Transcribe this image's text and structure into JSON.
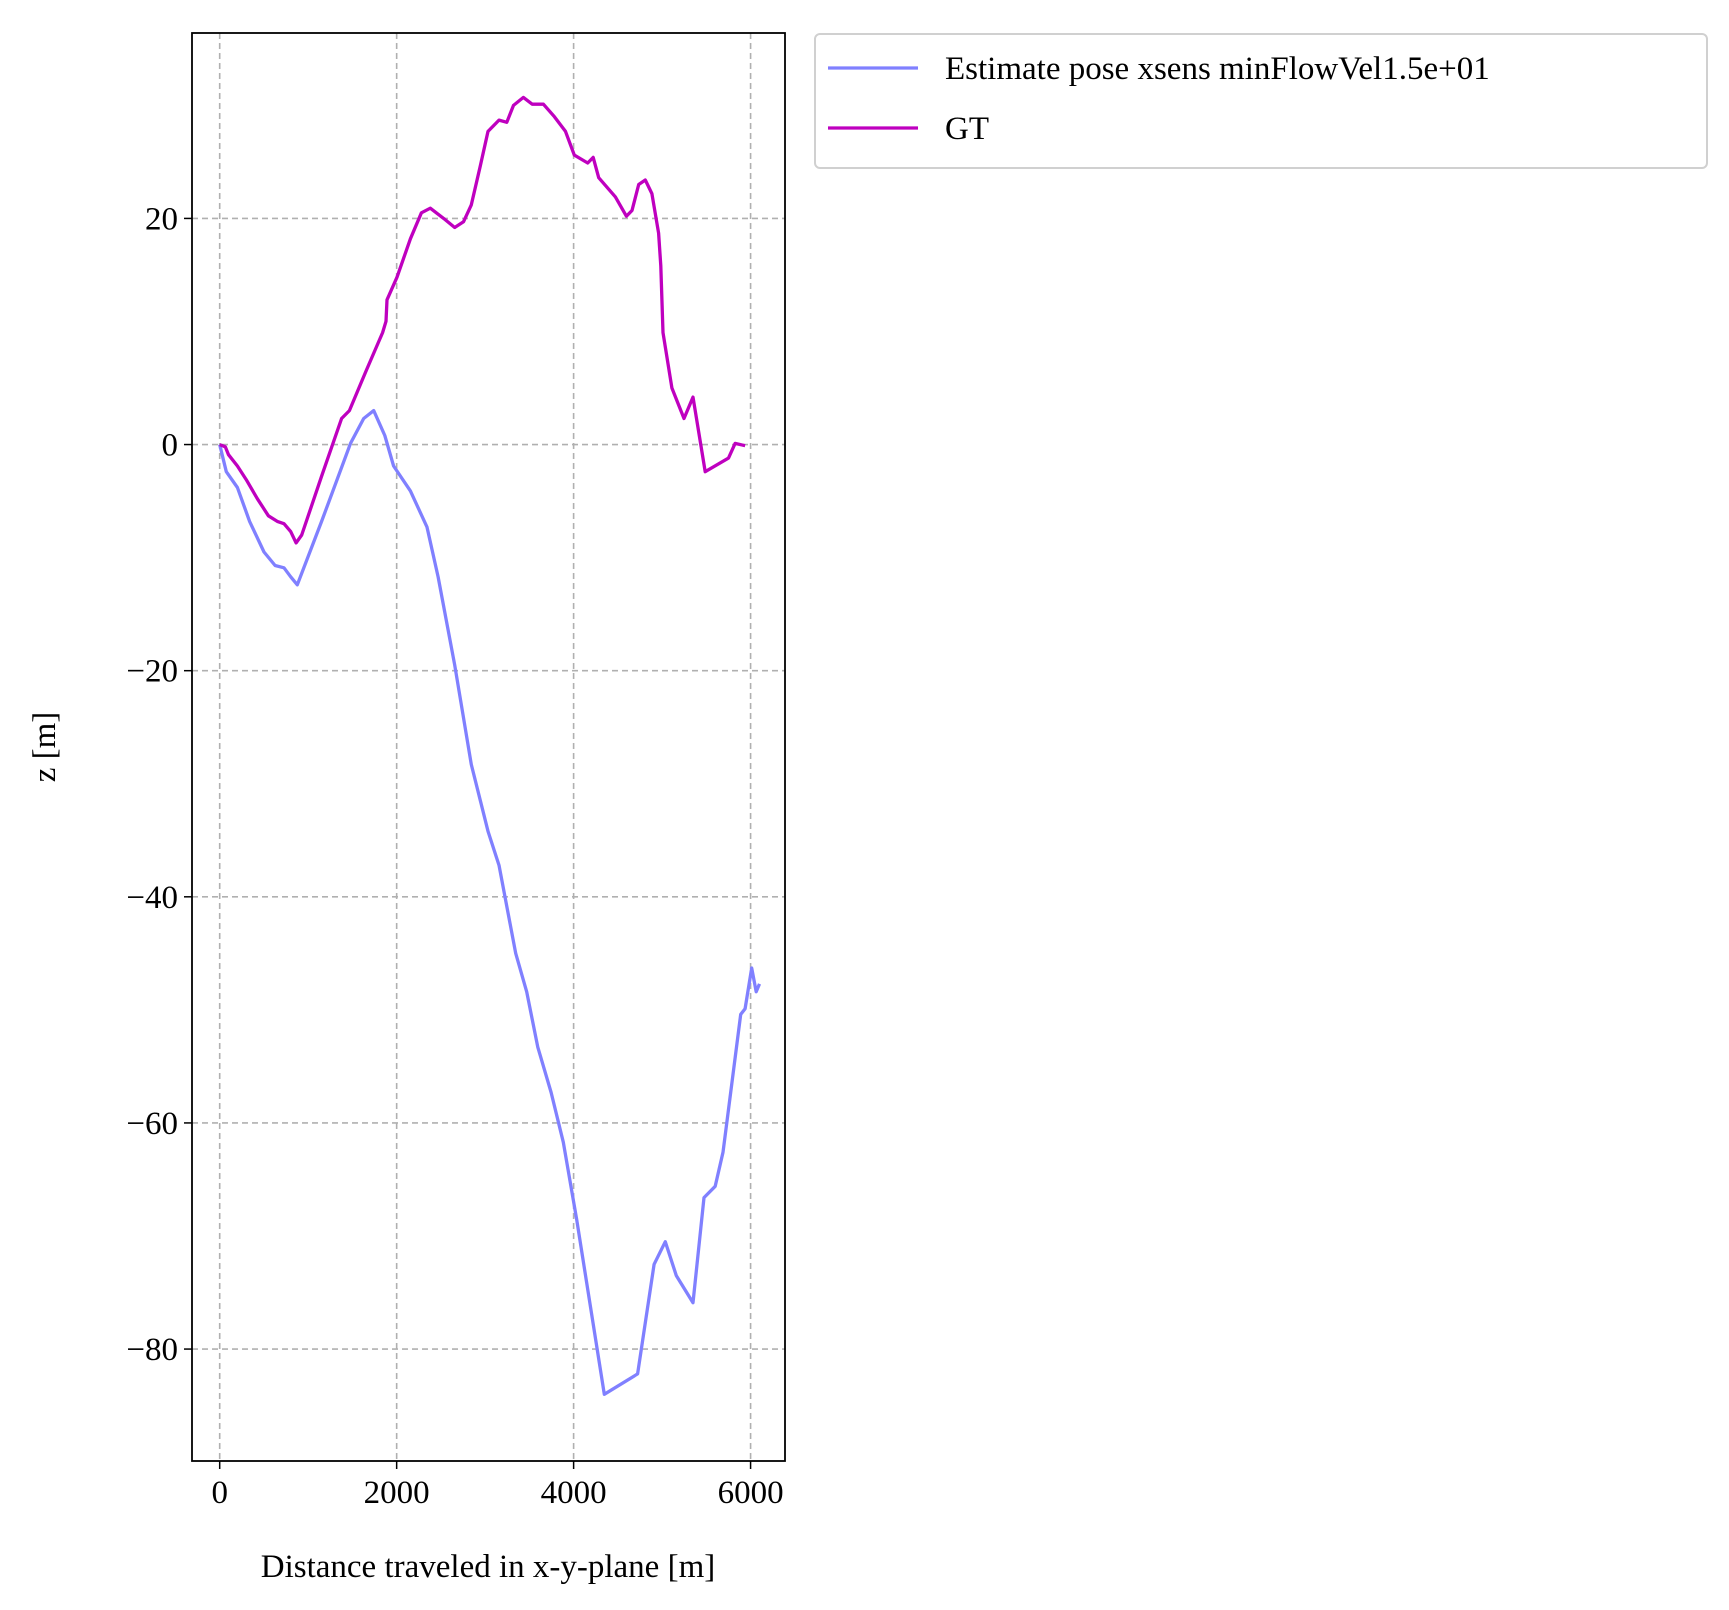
{
  "chart_data": {
    "type": "line",
    "xlabel": "Distance traveled in x-y-plane [m]",
    "ylabel": "z [m]",
    "xlim": [
      -313,
      6389
    ],
    "ylim": [
      -89.9,
      36.4
    ],
    "xticks": [
      0,
      2000,
      4000,
      6000
    ],
    "yticks": [
      {
        "value": -80,
        "label": "−80"
      },
      {
        "value": -60,
        "label": "−60"
      },
      {
        "value": -40,
        "label": "−40"
      },
      {
        "value": -20,
        "label": "−20"
      },
      0,
      20
    ],
    "grid": true,
    "legend": "outside",
    "series": [
      {
        "name": "Estimate pose xsens minFlowVel1.5e+01",
        "color": "#8080ff",
        "x": [
          0,
          75,
          200,
          338,
          501,
          626,
          727,
          802,
          877,
          1152,
          1478,
          1628,
          1741,
          1866,
          1966,
          2155,
          2343,
          2468,
          2656,
          2844,
          3032,
          3157,
          3345,
          3470,
          3595,
          3745,
          3883,
          4034,
          4347,
          4723,
          4910,
          5036,
          5161,
          5349,
          5474,
          5600,
          5688,
          5888,
          5938,
          6013,
          6063,
          6101
        ],
        "values": [
          0,
          -2.4,
          -3.8,
          -6.8,
          -9.5,
          -10.7,
          -10.9,
          -11.7,
          -12.4,
          -6.8,
          0.1,
          2.3,
          3,
          0.8,
          -1.9,
          -4.1,
          -7.3,
          -11.7,
          -19.5,
          -28.3,
          -34.2,
          -37.2,
          -45,
          -48.4,
          -53.3,
          -57.3,
          -61.7,
          -68.5,
          -84,
          -82.2,
          -72.5,
          -70.5,
          -73.5,
          -75.9,
          -66.6,
          -65.6,
          -62.6,
          -50.4,
          -49.9,
          -46.3,
          -48.4,
          -47.7
        ]
      },
      {
        "name": "GT",
        "color": "#bf00bf",
        "x": [
          0,
          63,
          100,
          200,
          300,
          426,
          551,
          651,
          727,
          802,
          864,
          927,
          1152,
          1378,
          1466,
          1653,
          1841,
          1879,
          1891,
          2004,
          2155,
          2280,
          2380,
          2531,
          2656,
          2756,
          2844,
          2944,
          3032,
          3157,
          3245,
          3320,
          3432,
          3532,
          3658,
          3783,
          3908,
          4008,
          4159,
          4221,
          4284,
          4472,
          4597,
          4660,
          4735,
          4810,
          4885,
          4960,
          4985,
          5010,
          5111,
          5248,
          5349,
          5487,
          5750,
          5825,
          5938
        ],
        "values": [
          0,
          -0.2,
          -0.9,
          -1.9,
          -3.1,
          -4.8,
          -6.3,
          -6.8,
          -7,
          -7.7,
          -8.7,
          -8,
          -2.8,
          2.3,
          3,
          6.5,
          9.9,
          10.9,
          12.8,
          14.8,
          18.2,
          20.5,
          20.9,
          20,
          19.2,
          19.7,
          21.2,
          24.6,
          27.7,
          28.7,
          28.5,
          30,
          30.7,
          30.1,
          30.1,
          29,
          27.7,
          25.6,
          24.9,
          25.4,
          23.6,
          21.9,
          20.2,
          20.7,
          23,
          23.4,
          22.2,
          18.7,
          15.8,
          9.9,
          5,
          2.3,
          4.2,
          -2.4,
          -1.2,
          0.1,
          -0.1
        ]
      }
    ]
  }
}
